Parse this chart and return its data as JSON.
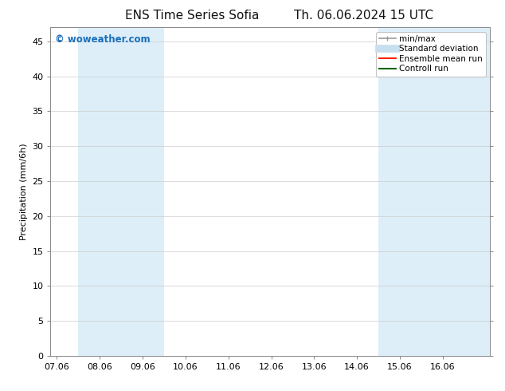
{
  "title_left": "ENS Time Series Sofia",
  "title_right": "Th. 06.06.2024 15 UTC",
  "ylabel": "Precipitation (mm/6h)",
  "ylim": [
    0,
    47
  ],
  "yticks": [
    0,
    5,
    10,
    15,
    20,
    25,
    30,
    35,
    40,
    45
  ],
  "xtick_labels": [
    "07.06",
    "08.06",
    "09.06",
    "10.06",
    "11.06",
    "12.06",
    "13.06",
    "14.06",
    "15.06",
    "16.06"
  ],
  "shaded_regions": [
    [
      0.5,
      1.5
    ],
    [
      1.5,
      2.5
    ],
    [
      7.5,
      8.5
    ],
    [
      8.5,
      9.5
    ],
    [
      9.5,
      10.1
    ]
  ],
  "shaded_color": "#ddeef8",
  "plot_bg_color": "#ffffff",
  "background_color": "#ffffff",
  "watermark": "© woweather.com",
  "watermark_color": "#1a6fba",
  "legend_items": [
    {
      "label": "min/max",
      "color": "#999999",
      "lw": 1.2,
      "style": "line_with_caps"
    },
    {
      "label": "Standard deviation",
      "color": "#c8dff0",
      "lw": 7,
      "style": "solid"
    },
    {
      "label": "Ensemble mean run",
      "color": "#ff2200",
      "lw": 1.5,
      "style": "solid"
    },
    {
      "label": "Controll run",
      "color": "#006600",
      "lw": 1.5,
      "style": "solid"
    }
  ],
  "title_fontsize": 11,
  "tick_fontsize": 8,
  "legend_fontsize": 7.5,
  "ylabel_fontsize": 8,
  "xlim": [
    -0.15,
    10.1
  ]
}
